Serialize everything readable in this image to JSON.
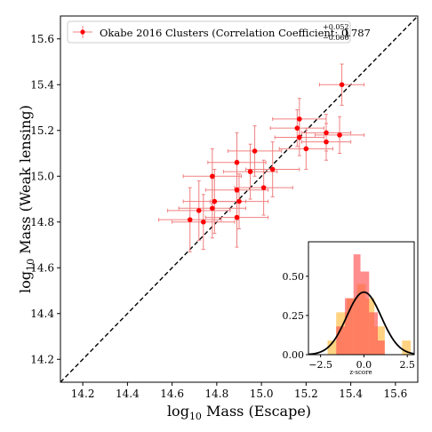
{
  "chart_data": [
    {
      "type": "scatter",
      "xlabel": "log₁₀ Mass (Escape)",
      "ylabel": "log₁₀ Mass (Weak lensing)",
      "xlim": [
        14.1,
        15.7
      ],
      "ylim": [
        14.1,
        15.7
      ],
      "xticks": [
        "14.2",
        "14.4",
        "14.6",
        "14.8",
        "15.0",
        "15.2",
        "15.4",
        "15.6"
      ],
      "yticks": [
        "14.2",
        "14.4",
        "14.6",
        "14.8",
        "15.0",
        "15.2",
        "15.4",
        "15.6"
      ],
      "grid": false,
      "legend_position": "top-left",
      "reference_line": "y = x (black dashed)",
      "series": [
        {
          "name": "Okabe 2016 Clusters (Correlation Coefficient: 0.787",
          "legend_sup": "+0.052",
          "legend_sub": "−0.060",
          "legend_close": ")",
          "color": "#ff0000",
          "errorbar_color": "#f08080",
          "points": [
            {
              "x": 14.68,
              "y": 14.81,
              "xerr": 0.14,
              "yerr": 0.14
            },
            {
              "x": 14.72,
              "y": 14.85,
              "xerr": 0.14,
              "yerr": 0.13
            },
            {
              "x": 14.74,
              "y": 14.8,
              "xerr": 0.14,
              "yerr": 0.12
            },
            {
              "x": 14.78,
              "y": 14.86,
              "xerr": 0.15,
              "yerr": 0.13
            },
            {
              "x": 14.79,
              "y": 14.89,
              "xerr": 0.14,
              "yerr": 0.14
            },
            {
              "x": 14.78,
              "y": 15.0,
              "xerr": 0.13,
              "yerr": 0.12
            },
            {
              "x": 14.89,
              "y": 14.82,
              "xerr": 0.14,
              "yerr": 0.13
            },
            {
              "x": 14.9,
              "y": 14.89,
              "xerr": 0.13,
              "yerr": 0.12
            },
            {
              "x": 14.89,
              "y": 14.94,
              "xerr": 0.14,
              "yerr": 0.13
            },
            {
              "x": 14.89,
              "y": 15.06,
              "xerr": 0.13,
              "yerr": 0.13
            },
            {
              "x": 14.95,
              "y": 15.02,
              "xerr": 0.12,
              "yerr": 0.12
            },
            {
              "x": 14.97,
              "y": 15.11,
              "xerr": 0.12,
              "yerr": 0.11
            },
            {
              "x": 15.01,
              "y": 14.95,
              "xerr": 0.13,
              "yerr": 0.12
            },
            {
              "x": 15.05,
              "y": 15.03,
              "xerr": 0.12,
              "yerr": 0.12
            },
            {
              "x": 15.16,
              "y": 15.21,
              "xerr": 0.12,
              "yerr": 0.08
            },
            {
              "x": 15.17,
              "y": 15.25,
              "xerr": 0.12,
              "yerr": 0.09
            },
            {
              "x": 15.17,
              "y": 15.17,
              "xerr": 0.11,
              "yerr": 0.08
            },
            {
              "x": 15.2,
              "y": 15.12,
              "xerr": 0.12,
              "yerr": 0.09
            },
            {
              "x": 15.29,
              "y": 15.19,
              "xerr": 0.11,
              "yerr": 0.08
            },
            {
              "x": 15.29,
              "y": 15.15,
              "xerr": 0.11,
              "yerr": 0.08
            },
            {
              "x": 15.35,
              "y": 15.18,
              "xerr": 0.11,
              "yerr": 0.08
            },
            {
              "x": 15.36,
              "y": 15.4,
              "xerr": 0.1,
              "yerr": 0.09
            }
          ]
        }
      ]
    },
    {
      "type": "histogram",
      "xlabel": "z-score",
      "xlim": [
        -3.2,
        2.9
      ],
      "ylim": [
        0,
        0.72
      ],
      "xticks": [
        "−2.5",
        "0.0",
        "2.5"
      ],
      "yticks": [
        "0.00",
        "0.25",
        "0.50"
      ],
      "series": [
        {
          "color": "#ffc04d",
          "alpha": 0.7,
          "bins": [
            {
              "x0": -2.1,
              "x1": -1.6,
              "y": 0.09
            },
            {
              "x0": -1.6,
              "x1": -1.0,
              "y": 0.27
            },
            {
              "x0": -1.0,
              "x1": -0.4,
              "y": 0.36
            },
            {
              "x0": -0.4,
              "x1": 0.1,
              "y": 0.45
            },
            {
              "x0": 0.1,
              "x1": 0.6,
              "y": 0.36
            },
            {
              "x0": 0.6,
              "x1": 1.2,
              "y": 0.18
            },
            {
              "x0": 2.2,
              "x1": 2.7,
              "y": 0.09
            }
          ]
        },
        {
          "color": "#ff5050",
          "alpha": 0.65,
          "bins": [
            {
              "x0": -1.6,
              "x1": -1.1,
              "y": 0.18
            },
            {
              "x0": -1.1,
              "x1": -0.6,
              "y": 0.36
            },
            {
              "x0": -0.6,
              "x1": -0.2,
              "y": 0.64
            },
            {
              "x0": -0.2,
              "x1": 0.3,
              "y": 0.53
            },
            {
              "x0": 0.3,
              "x1": 0.8,
              "y": 0.27
            },
            {
              "x0": 0.8,
              "x1": 1.2,
              "y": 0.09
            }
          ]
        }
      ],
      "curve": {
        "type": "normal pdf",
        "mean": 0,
        "sd": 1,
        "color": "#000000"
      }
    }
  ]
}
